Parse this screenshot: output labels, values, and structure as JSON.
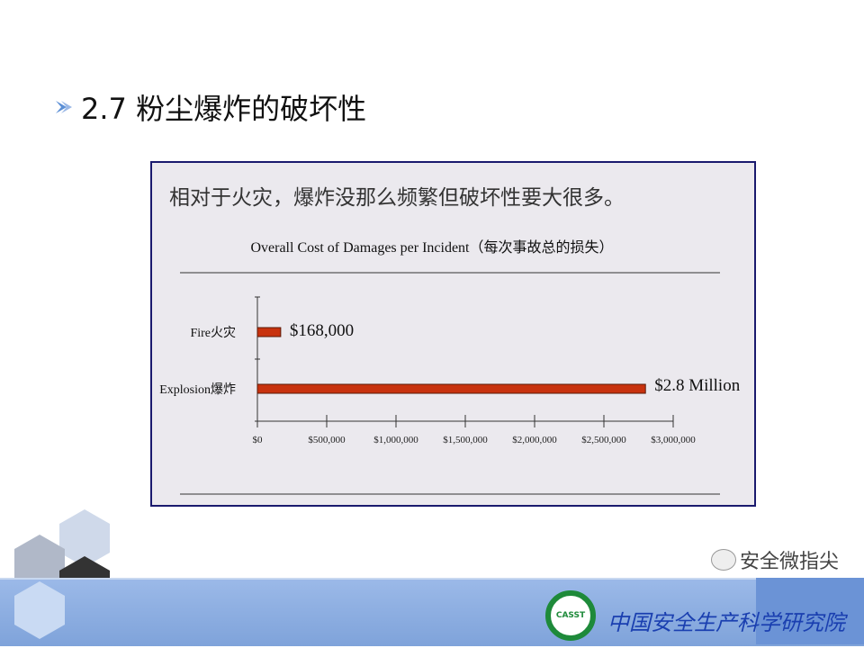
{
  "slide": {
    "title": "2.7 粉尘爆炸的破坏性",
    "subtitle": "相对于火灾，爆炸没那么频繁但破坏性要大很多。"
  },
  "chart_data": {
    "type": "bar",
    "orientation": "horizontal",
    "title": "Overall Cost of Damages per Incident（每次事故总的损失）",
    "categories": [
      "Fire火灾",
      "Explosion爆炸"
    ],
    "values": [
      168000,
      2800000
    ],
    "data_labels": [
      "$168,000",
      "$2.8 Million"
    ],
    "xlim": [
      0,
      3000000
    ],
    "x_ticks": [
      0,
      500000,
      1000000,
      1500000,
      2000000,
      2500000,
      3000000
    ],
    "x_tick_labels": [
      "$0",
      "$500,000",
      "$1,000,000",
      "$1,500,000",
      "$2,000,000",
      "$2,500,000",
      "$3,000,000"
    ],
    "bar_color": "#c8320e",
    "grid": false,
    "legend": "none"
  },
  "footer": {
    "logo_text": "CASST",
    "org_name": "中国安全生产科学研究院",
    "watermark": "安全微指尖"
  }
}
